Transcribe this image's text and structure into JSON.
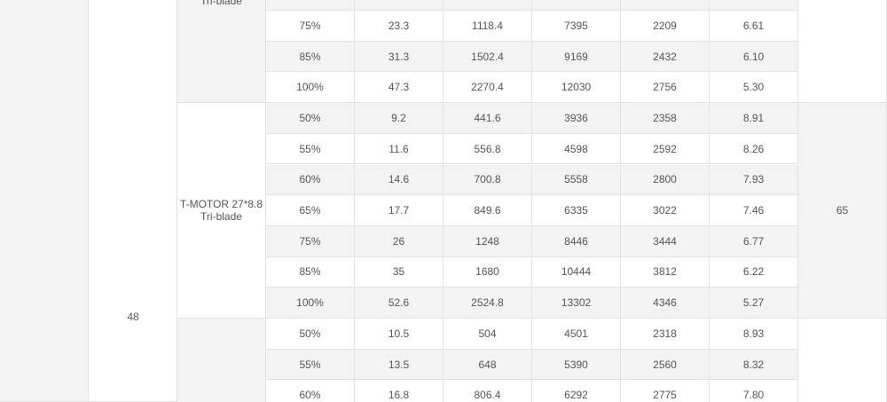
{
  "voltage": "48",
  "groups": [
    {
      "prop": [
        "Tri-blade"
      ],
      "rows": [
        [
          "75%",
          "23.3",
          "1118.4",
          "7395",
          "2209",
          "6.61"
        ],
        [
          "85%",
          "31.3",
          "1502.4",
          "9169",
          "2432",
          "6.10"
        ],
        [
          "100%",
          "47.3",
          "2270.4",
          "12030",
          "2756",
          "5.30"
        ]
      ]
    },
    {
      "prop": [
        "T-MOTOR 27*8.8",
        "Tri-blade"
      ],
      "temp": "65",
      "rows": [
        [
          "50%",
          "9.2",
          "441.6",
          "3936",
          "2358",
          "8.91"
        ],
        [
          "55%",
          "11.6",
          "556.8",
          "4598",
          "2592",
          "8.26"
        ],
        [
          "60%",
          "14.6",
          "700.8",
          "5558",
          "2800",
          "7.93"
        ],
        [
          "65%",
          "17.7",
          "849.6",
          "6335",
          "3022",
          "7.46"
        ],
        [
          "75%",
          "26",
          "1248",
          "8446",
          "3444",
          "6.77"
        ],
        [
          "85%",
          "35",
          "1680",
          "10444",
          "3812",
          "6.22"
        ],
        [
          "100%",
          "52.6",
          "2524.8",
          "13302",
          "4346",
          "5.27"
        ]
      ]
    },
    {
      "rows": [
        [
          "50%",
          "10.5",
          "504",
          "4501",
          "2318",
          "8.93"
        ],
        [
          "55%",
          "13.5",
          "648",
          "5390",
          "2560",
          "8.32"
        ],
        [
          "60%",
          "16.8",
          "806.4",
          "6292",
          "2775",
          "7.80"
        ]
      ]
    }
  ]
}
